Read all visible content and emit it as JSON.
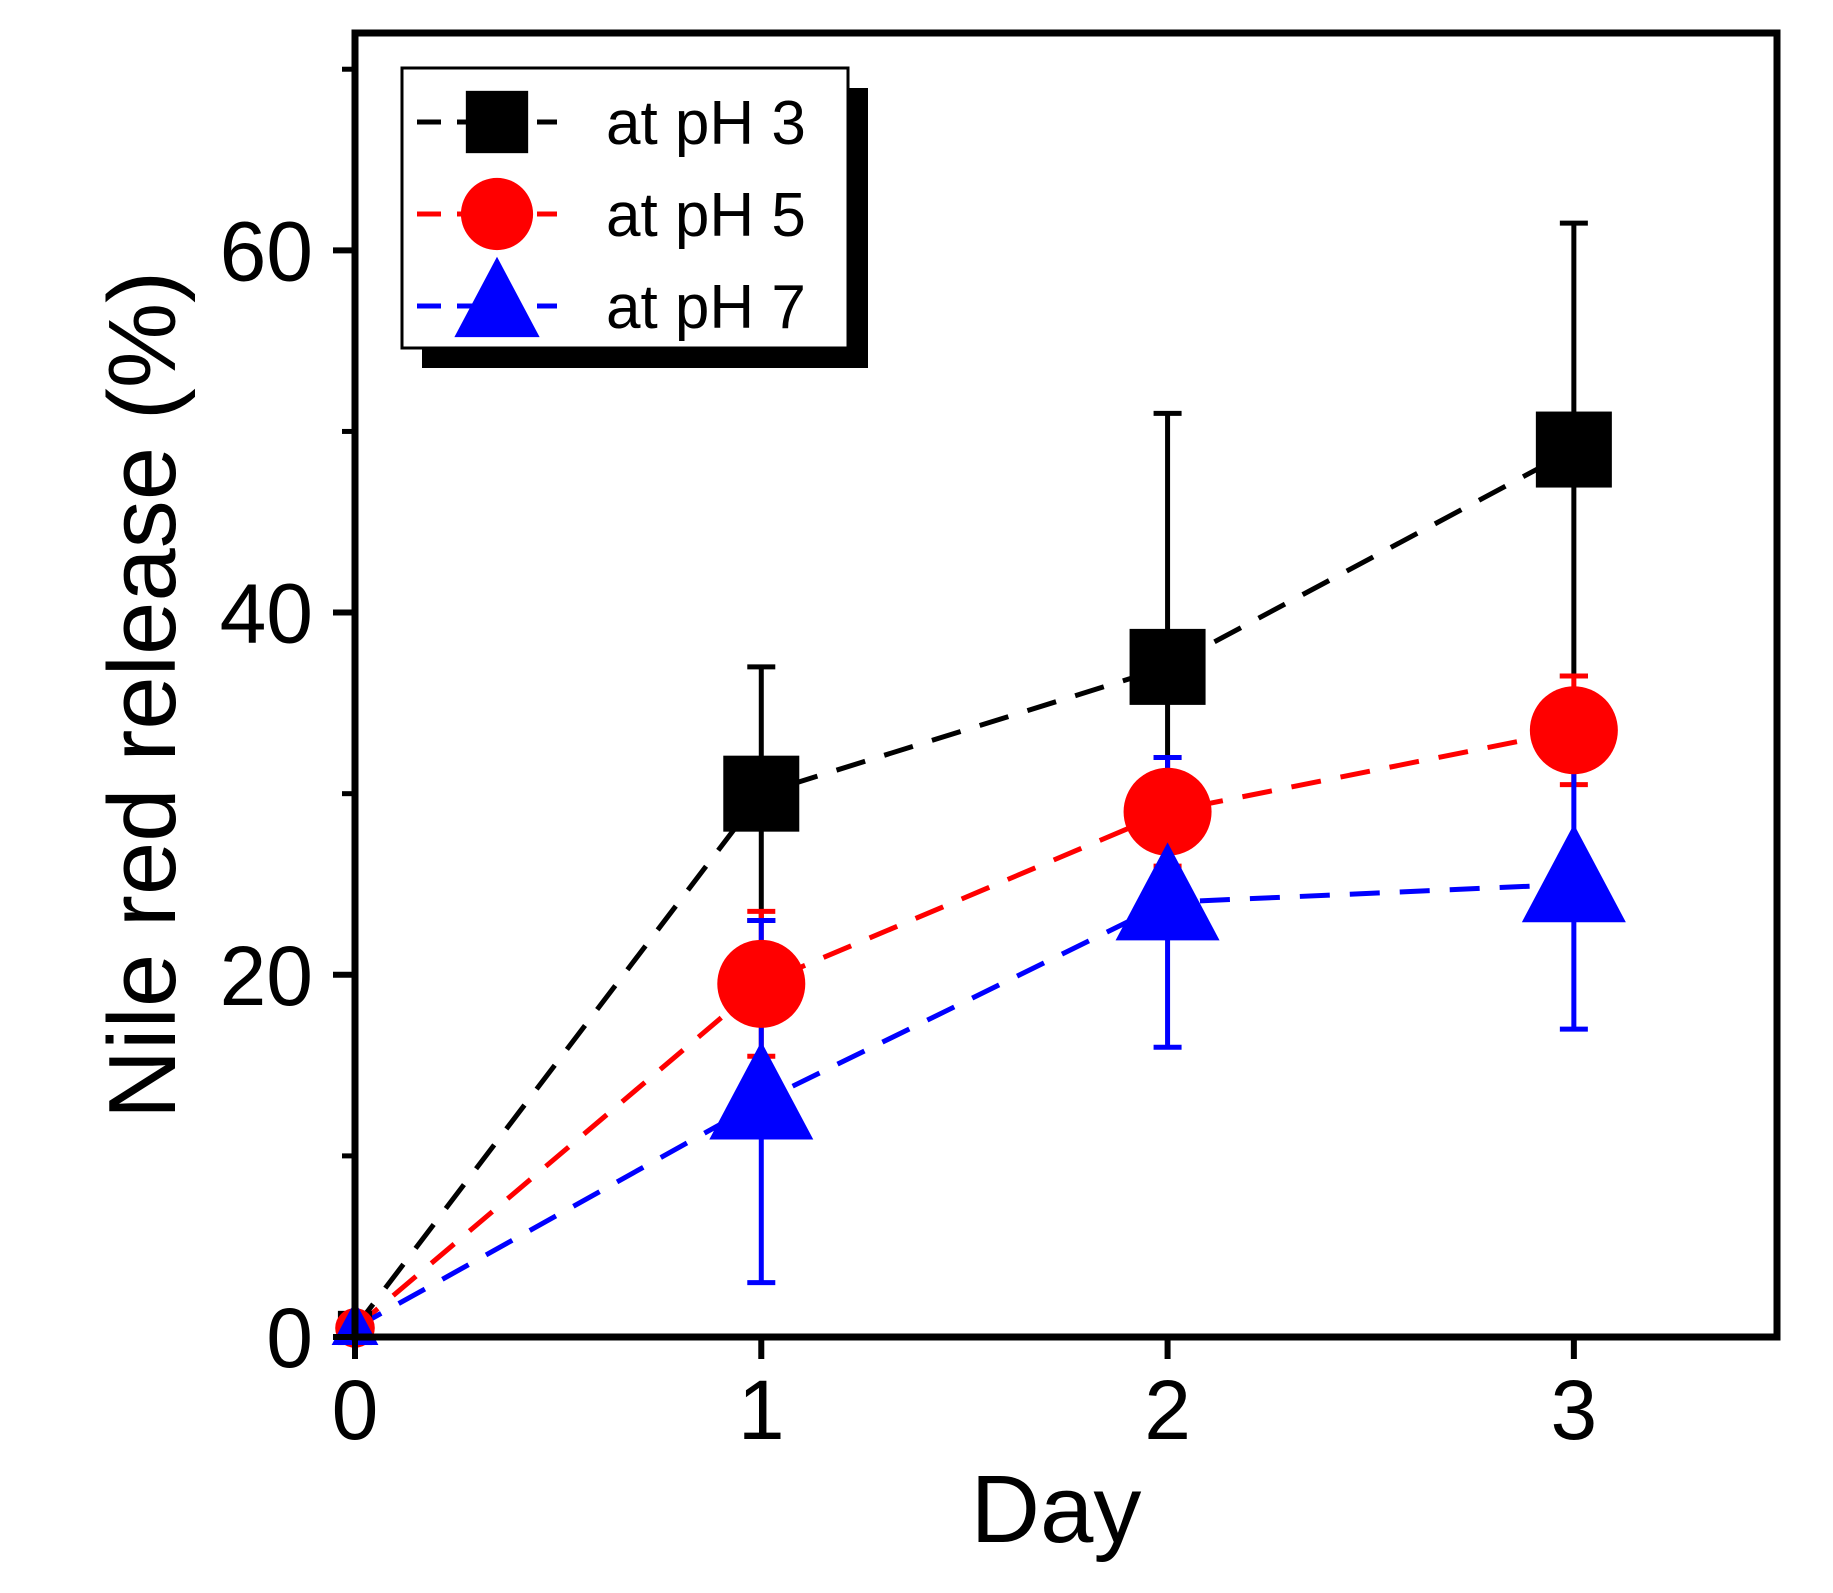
{
  "chart_data": {
    "type": "line",
    "title": "",
    "xlabel": "Day",
    "ylabel": "Nile red release (%)",
    "xlim": [
      0,
      3.5
    ],
    "ylim": [
      0,
      72
    ],
    "x_ticks": [
      0,
      1,
      2,
      3
    ],
    "y_major_ticks": [
      0,
      20,
      40,
      60
    ],
    "y_minor_ticks": [
      10,
      30,
      50,
      70
    ],
    "legend_position": "top-left",
    "x": [
      0,
      1,
      2,
      3
    ],
    "series": [
      {
        "name": "at pH 3",
        "color": "#000000",
        "marker": "square",
        "line_style": "dashed",
        "values": [
          0.5,
          30,
          37,
          49
        ],
        "error": [
          0,
          7,
          14,
          12.5
        ]
      },
      {
        "name": "at pH 5",
        "color": "#ff0000",
        "marker": "circle",
        "line_style": "dashed",
        "values": [
          0.5,
          19.5,
          29,
          33.5
        ],
        "error": [
          0,
          4,
          3,
          3
        ]
      },
      {
        "name": "at pH 7",
        "color": "#0000ff",
        "marker": "triangle",
        "line_style": "dashed",
        "values": [
          0.5,
          13,
          24,
          25
        ],
        "error": [
          0,
          10,
          8,
          8
        ]
      }
    ]
  }
}
